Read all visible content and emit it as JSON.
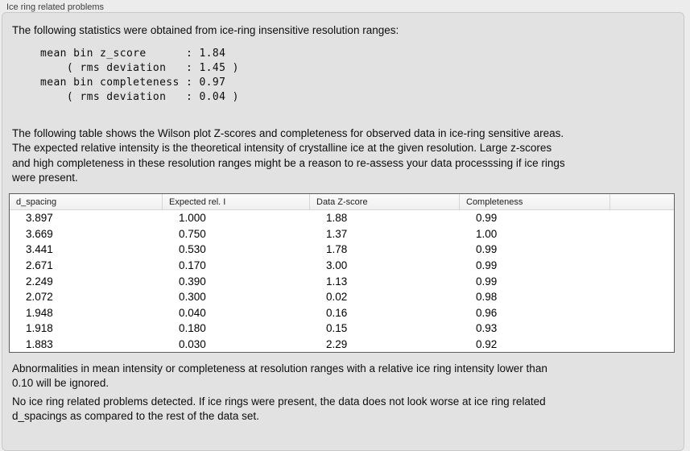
{
  "group_title": "Ice ring related problems",
  "intro": "The following statistics were obtained from ice-ring insensitive resolution ranges:",
  "stats_block": "mean bin z_score      : 1.84\n    ( rms deviation   : 1.45 )\nmean bin completeness : 0.97\n    ( rms deviation   : 0.04 )",
  "stats": {
    "mean_bin_z_score": "1.84",
    "mean_bin_z_score_rms_deviation": "1.45",
    "mean_bin_completeness": "0.97",
    "mean_bin_completeness_rms_deviation": "0.04"
  },
  "table_description": "The following table shows the Wilson plot Z-scores and completeness for observed data in ice-ring sensitive areas.\nThe expected relative intensity is the theoretical intensity of crystalline ice at the given resolution. Large z-scores\nand high completeness in these resolution ranges might be a reason to re-assess your data processsing if ice rings\nwere present.",
  "table": {
    "columns": [
      "d_spacing",
      "Expected rel. I",
      "Data Z-score",
      "Completeness"
    ],
    "rows": [
      [
        "3.897",
        "1.000",
        "1.88",
        "0.99"
      ],
      [
        "3.669",
        "0.750",
        "1.37",
        "1.00"
      ],
      [
        "3.441",
        "0.530",
        "1.78",
        "0.99"
      ],
      [
        "2.671",
        "0.170",
        "3.00",
        "0.99"
      ],
      [
        "2.249",
        "0.390",
        "1.13",
        "0.99"
      ],
      [
        "2.072",
        "0.300",
        "0.02",
        "0.98"
      ],
      [
        "1.948",
        "0.040",
        "0.16",
        "0.96"
      ],
      [
        "1.918",
        "0.180",
        "0.15",
        "0.93"
      ],
      [
        "1.883",
        "0.030",
        "2.29",
        "0.92"
      ]
    ]
  },
  "note_ignore": "Abnormalities in mean intensity or completeness at resolution ranges with a relative ice ring intensity lower than\n0.10 will be ignored.",
  "conclusion": "No ice ring related problems detected. If ice rings were present, the data does not look worse at ice ring related\nd_spacings as compared to the rest of the data set.",
  "colors": {
    "page-bg": "#ececec",
    "panel-bg": "#e2e2e2",
    "panel-border": "#c9c9c9",
    "table-border": "#5c5c5c",
    "header-sep": "#d6d6d6",
    "text": "#0d0d0d"
  }
}
